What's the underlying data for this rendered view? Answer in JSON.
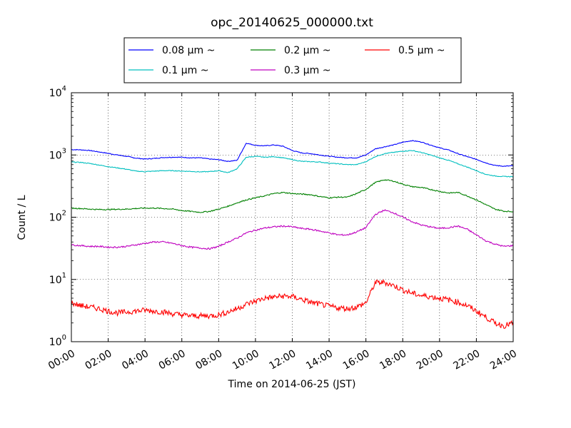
{
  "chart_data": {
    "type": "line",
    "title": "opc_20140625_000000.txt",
    "xlabel": "Time on 2014-06-25 (JST)",
    "ylabel": "Count / L",
    "yscale": "log",
    "ylim": [
      1,
      10000
    ],
    "xlim": [
      "00:00",
      "24:00"
    ],
    "x_unit": "hours",
    "x_ticks": [
      "00:00",
      "02:00",
      "04:00",
      "06:00",
      "08:00",
      "10:00",
      "12:00",
      "14:00",
      "16:00",
      "18:00",
      "20:00",
      "22:00",
      "24:00"
    ],
    "y_ticks": [
      {
        "base": "10",
        "exp": "0"
      },
      {
        "base": "10",
        "exp": "1"
      },
      {
        "base": "10",
        "exp": "2"
      },
      {
        "base": "10",
        "exp": "3"
      },
      {
        "base": "10",
        "exp": "4"
      }
    ],
    "grid": true,
    "legend_position": "top-center",
    "x": [
      0,
      0.5,
      1,
      1.5,
      2,
      2.5,
      3,
      3.5,
      4,
      4.5,
      5,
      5.5,
      6,
      6.5,
      7,
      7.5,
      8,
      8.5,
      9,
      9.5,
      10,
      10.5,
      11,
      11.5,
      12,
      12.5,
      13,
      13.5,
      14,
      14.5,
      15,
      15.5,
      16,
      16.5,
      17,
      17.5,
      18,
      18.5,
      19,
      19.5,
      20,
      20.5,
      21,
      21.5,
      22,
      22.5,
      23,
      23.5,
      24
    ],
    "series": [
      {
        "name": "0.08 μm ~",
        "color": "#0000ff",
        "values": [
          1220,
          1210,
          1180,
          1120,
          1060,
          1000,
          950,
          890,
          860,
          880,
          910,
          920,
          920,
          900,
          900,
          860,
          840,
          790,
          820,
          1550,
          1430,
          1400,
          1450,
          1380,
          1180,
          1080,
          1050,
          1000,
          950,
          920,
          900,
          900,
          1000,
          1250,
          1350,
          1450,
          1600,
          1700,
          1620,
          1450,
          1300,
          1200,
          1050,
          940,
          850,
          750,
          680,
          660,
          670
        ]
      },
      {
        "name": "0.1 μm ~",
        "color": "#00bfbf",
        "values": [
          770,
          760,
          730,
          690,
          650,
          620,
          590,
          550,
          540,
          550,
          560,
          560,
          550,
          545,
          535,
          540,
          560,
          520,
          600,
          920,
          950,
          920,
          940,
          900,
          840,
          790,
          780,
          770,
          740,
          720,
          700,
          700,
          780,
          940,
          1050,
          1100,
          1150,
          1180,
          1100,
          1000,
          900,
          820,
          720,
          640,
          560,
          490,
          460,
          450,
          450
        ]
      },
      {
        "name": "0.2 μm ~",
        "color": "#008000",
        "values": [
          140,
          138,
          135,
          133,
          133,
          134,
          135,
          138,
          140,
          140,
          138,
          135,
          128,
          124,
          120,
          124,
          135,
          150,
          170,
          190,
          205,
          220,
          240,
          250,
          240,
          235,
          230,
          215,
          205,
          210,
          210,
          240,
          280,
          360,
          400,
          380,
          340,
          310,
          300,
          280,
          260,
          245,
          250,
          220,
          190,
          160,
          135,
          125,
          123
        ]
      },
      {
        "name": "0.3 μm ~",
        "color": "#bf00bf",
        "values": [
          36,
          35,
          34,
          34,
          33,
          33,
          34,
          36,
          38,
          40,
          40,
          38,
          35,
          33,
          32,
          31,
          34,
          40,
          46,
          56,
          62,
          67,
          70,
          72,
          70,
          66,
          64,
          60,
          56,
          52,
          52,
          58,
          68,
          110,
          130,
          118,
          100,
          85,
          75,
          70,
          66,
          68,
          72,
          64,
          52,
          42,
          37,
          34,
          35
        ]
      },
      {
        "name": "0.5 μm ~",
        "color": "#ff0000",
        "values": [
          4.2,
          3.8,
          3.6,
          3.4,
          3.1,
          2.9,
          3.0,
          3.1,
          3.2,
          3.1,
          3.0,
          2.8,
          2.7,
          2.6,
          2.6,
          2.6,
          2.7,
          3.0,
          3.4,
          4.0,
          4.5,
          5.0,
          5.2,
          5.4,
          5.3,
          4.8,
          4.3,
          4.0,
          3.7,
          3.5,
          3.4,
          3.6,
          4.2,
          8.8,
          9.0,
          8.0,
          6.8,
          6.0,
          5.5,
          5.3,
          5.0,
          4.7,
          4.3,
          3.8,
          3.1,
          2.5,
          2.0,
          1.8,
          2.0
        ]
      }
    ]
  }
}
